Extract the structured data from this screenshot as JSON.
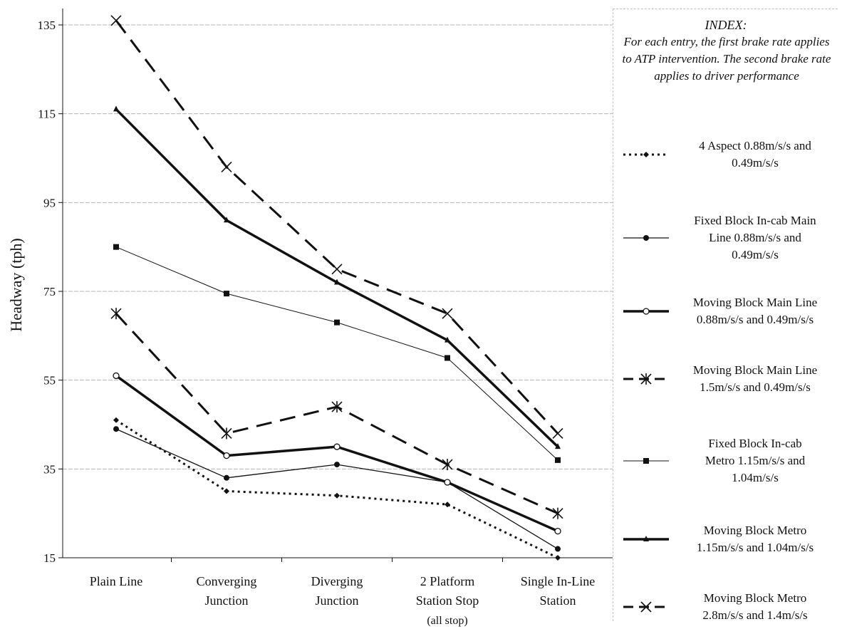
{
  "chart_data": {
    "type": "line",
    "ylabel": "Headway (tph)",
    "xlabel": "",
    "ylim": [
      15,
      137
    ],
    "yticks": [
      15,
      35,
      55,
      75,
      95,
      115,
      135
    ],
    "categories": [
      [
        "Plain Line"
      ],
      [
        "Converging",
        "Junction"
      ],
      [
        "Diverging",
        "Junction"
      ],
      [
        "2 Platform",
        "Station Stop",
        "(all stop)"
      ],
      [
        "Single In-Line",
        "Station"
      ]
    ],
    "grid": true,
    "legend_position": "right",
    "series": [
      {
        "name_lines": [
          "4 Aspect 0.88m/s/s and",
          "0.49m/s/s"
        ],
        "values": [
          46,
          30,
          29,
          27,
          15
        ],
        "style": {
          "dash": "3,5",
          "width": 3,
          "marker": "diamond"
        }
      },
      {
        "name_lines": [
          "Fixed Block In-cab Main",
          "Line 0.88m/s/s and",
          "0.49m/s/s"
        ],
        "values": [
          44,
          33,
          36,
          32,
          17
        ],
        "style": {
          "dash": "",
          "width": 1.3,
          "marker": "circle"
        }
      },
      {
        "name_lines": [
          "Moving Block Main Line",
          "0.88m/s/s and 0.49m/s/s"
        ],
        "values": [
          56,
          38,
          40,
          32,
          21
        ],
        "style": {
          "dash": "",
          "width": 3.5,
          "marker": "circle-open"
        }
      },
      {
        "name_lines": [
          "Moving Block Main Line",
          "1.5m/s/s and 0.49m/s/s"
        ],
        "values": [
          70,
          43,
          49,
          36,
          25
        ],
        "style": {
          "dash": "22,12",
          "width": 3,
          "marker": "asterisk"
        }
      },
      {
        "name_lines": [
          "Fixed Block In-cab",
          "Metro 1.15m/s/s and",
          "1.04m/s/s"
        ],
        "values": [
          85,
          74.5,
          68,
          60,
          37
        ],
        "style": {
          "dash": "",
          "width": 1,
          "marker": "square"
        }
      },
      {
        "name_lines": [
          "Moving Block Metro",
          "1.15m/s/s and 1.04m/s/s"
        ],
        "values": [
          116,
          91,
          77,
          64,
          40
        ],
        "style": {
          "dash": "",
          "width": 3.5,
          "marker": "triangle"
        }
      },
      {
        "name_lines": [
          "Moving Block Metro",
          "2.8m/s/s and 1.4m/s/s"
        ],
        "values": [
          136,
          103,
          80,
          70,
          43
        ],
        "style": {
          "dash": "22,12",
          "width": 3,
          "marker": "x"
        }
      }
    ]
  },
  "legend": {
    "index_title": "INDEX:",
    "index_text": "For each entry, the first brake rate applies to ATP intervention. The second brake rate applies to driver performance"
  },
  "colors": {
    "line": "#111111",
    "grid": "#b5b5b5",
    "background": "#ffffff"
  }
}
